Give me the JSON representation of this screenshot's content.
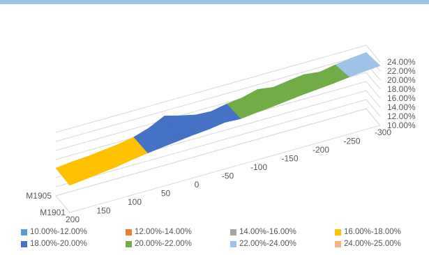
{
  "chart_data": {
    "type": "surface",
    "title": "",
    "xlabel": "",
    "ylabel": "",
    "zlabel": "",
    "x_ticks": [
      "200",
      "150",
      "100",
      "50",
      "0",
      "-50",
      "-100",
      "-150",
      "-200",
      "-250",
      "-300"
    ],
    "y_ticks": [
      "M1901",
      "M1905"
    ],
    "z_ticks": [
      "10.00%",
      "12.00%",
      "14.00%",
      "16.00%",
      "18.00%",
      "20.00%",
      "22.00%",
      "24.00%"
    ],
    "zlim": [
      0.1,
      0.24
    ],
    "grid": true,
    "legend_position": "bottom",
    "series": [
      {
        "name": "M1901",
        "values": [
          0.16,
          0.164,
          0.168,
          0.172,
          0.178,
          0.183,
          0.187,
          0.191,
          0.195,
          0.198,
          0.203,
          0.201,
          0.205,
          0.208,
          0.212,
          0.216,
          0.219,
          0.222,
          0.226,
          0.229,
          0.232
        ]
      },
      {
        "name": "M1905",
        "values": [
          0.161,
          0.165,
          0.167,
          0.171,
          0.175,
          0.181,
          0.192,
          0.209,
          0.2,
          0.192,
          0.19,
          0.197,
          0.201,
          0.21,
          0.205,
          0.21,
          0.214,
          0.21,
          0.216,
          0.221,
          0.224
        ]
      }
    ],
    "bands": [
      {
        "label": "10.00%-12.00%",
        "color": "#5b9bd5"
      },
      {
        "label": "12.00%-14.00%",
        "color": "#ed7d31"
      },
      {
        "label": "14.00%-16.00%",
        "color": "#a5a5a5"
      },
      {
        "label": "16.00%-18.00%",
        "color": "#ffc000"
      },
      {
        "label": "18.00%-20.00%",
        "color": "#4472c4"
      },
      {
        "label": "20.00%-22.00%",
        "color": "#70ad47"
      },
      {
        "label": "22.00%-24.00%",
        "color": "#9dc3e6"
      },
      {
        "label": "24.00%-25.00%",
        "color": "#f4b183"
      }
    ]
  }
}
